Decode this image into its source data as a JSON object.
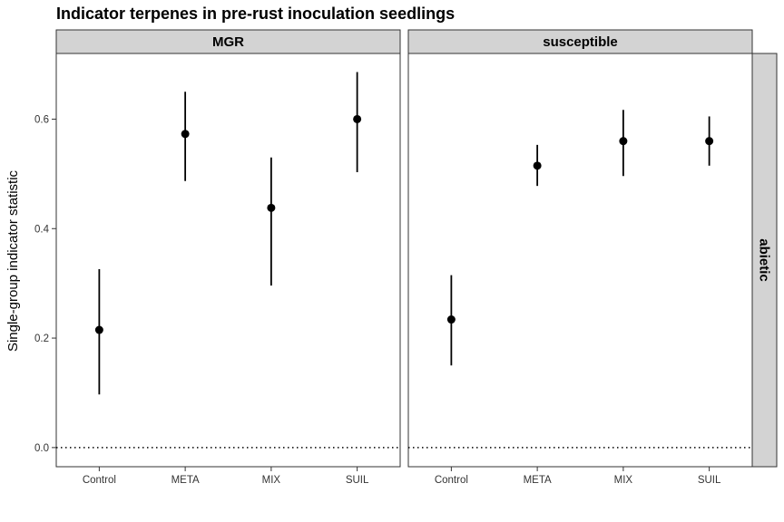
{
  "chart_data": {
    "type": "scatter",
    "title": "Indicator terpenes in pre-rust inoculation seedlings",
    "ylabel": "Single-group indicator statistic",
    "xlabel": "",
    "categories": [
      "Control",
      "META",
      "MIX",
      "SUIL"
    ],
    "yticks": [
      "0.0",
      "0.2",
      "0.4",
      "0.6"
    ],
    "ylim": [
      -0.035,
      0.72
    ],
    "reference_line": 0.0,
    "row_strip": "abietic",
    "grid": false,
    "panels": [
      {
        "name": "MGR",
        "points": [
          {
            "category": "Control",
            "y": 0.215,
            "low": 0.097,
            "high": 0.326
          },
          {
            "category": "META",
            "y": 0.573,
            "low": 0.487,
            "high": 0.65
          },
          {
            "category": "MIX",
            "y": 0.438,
            "low": 0.296,
            "high": 0.53
          },
          {
            "category": "SUIL",
            "y": 0.6,
            "low": 0.503,
            "high": 0.686
          }
        ]
      },
      {
        "name": "susceptible",
        "points": [
          {
            "category": "Control",
            "y": 0.234,
            "low": 0.15,
            "high": 0.315
          },
          {
            "category": "META",
            "y": 0.515,
            "low": 0.478,
            "high": 0.553
          },
          {
            "category": "MIX",
            "y": 0.56,
            "low": 0.496,
            "high": 0.617
          },
          {
            "category": "SUIL",
            "y": 0.56,
            "low": 0.515,
            "high": 0.605
          }
        ]
      }
    ]
  }
}
